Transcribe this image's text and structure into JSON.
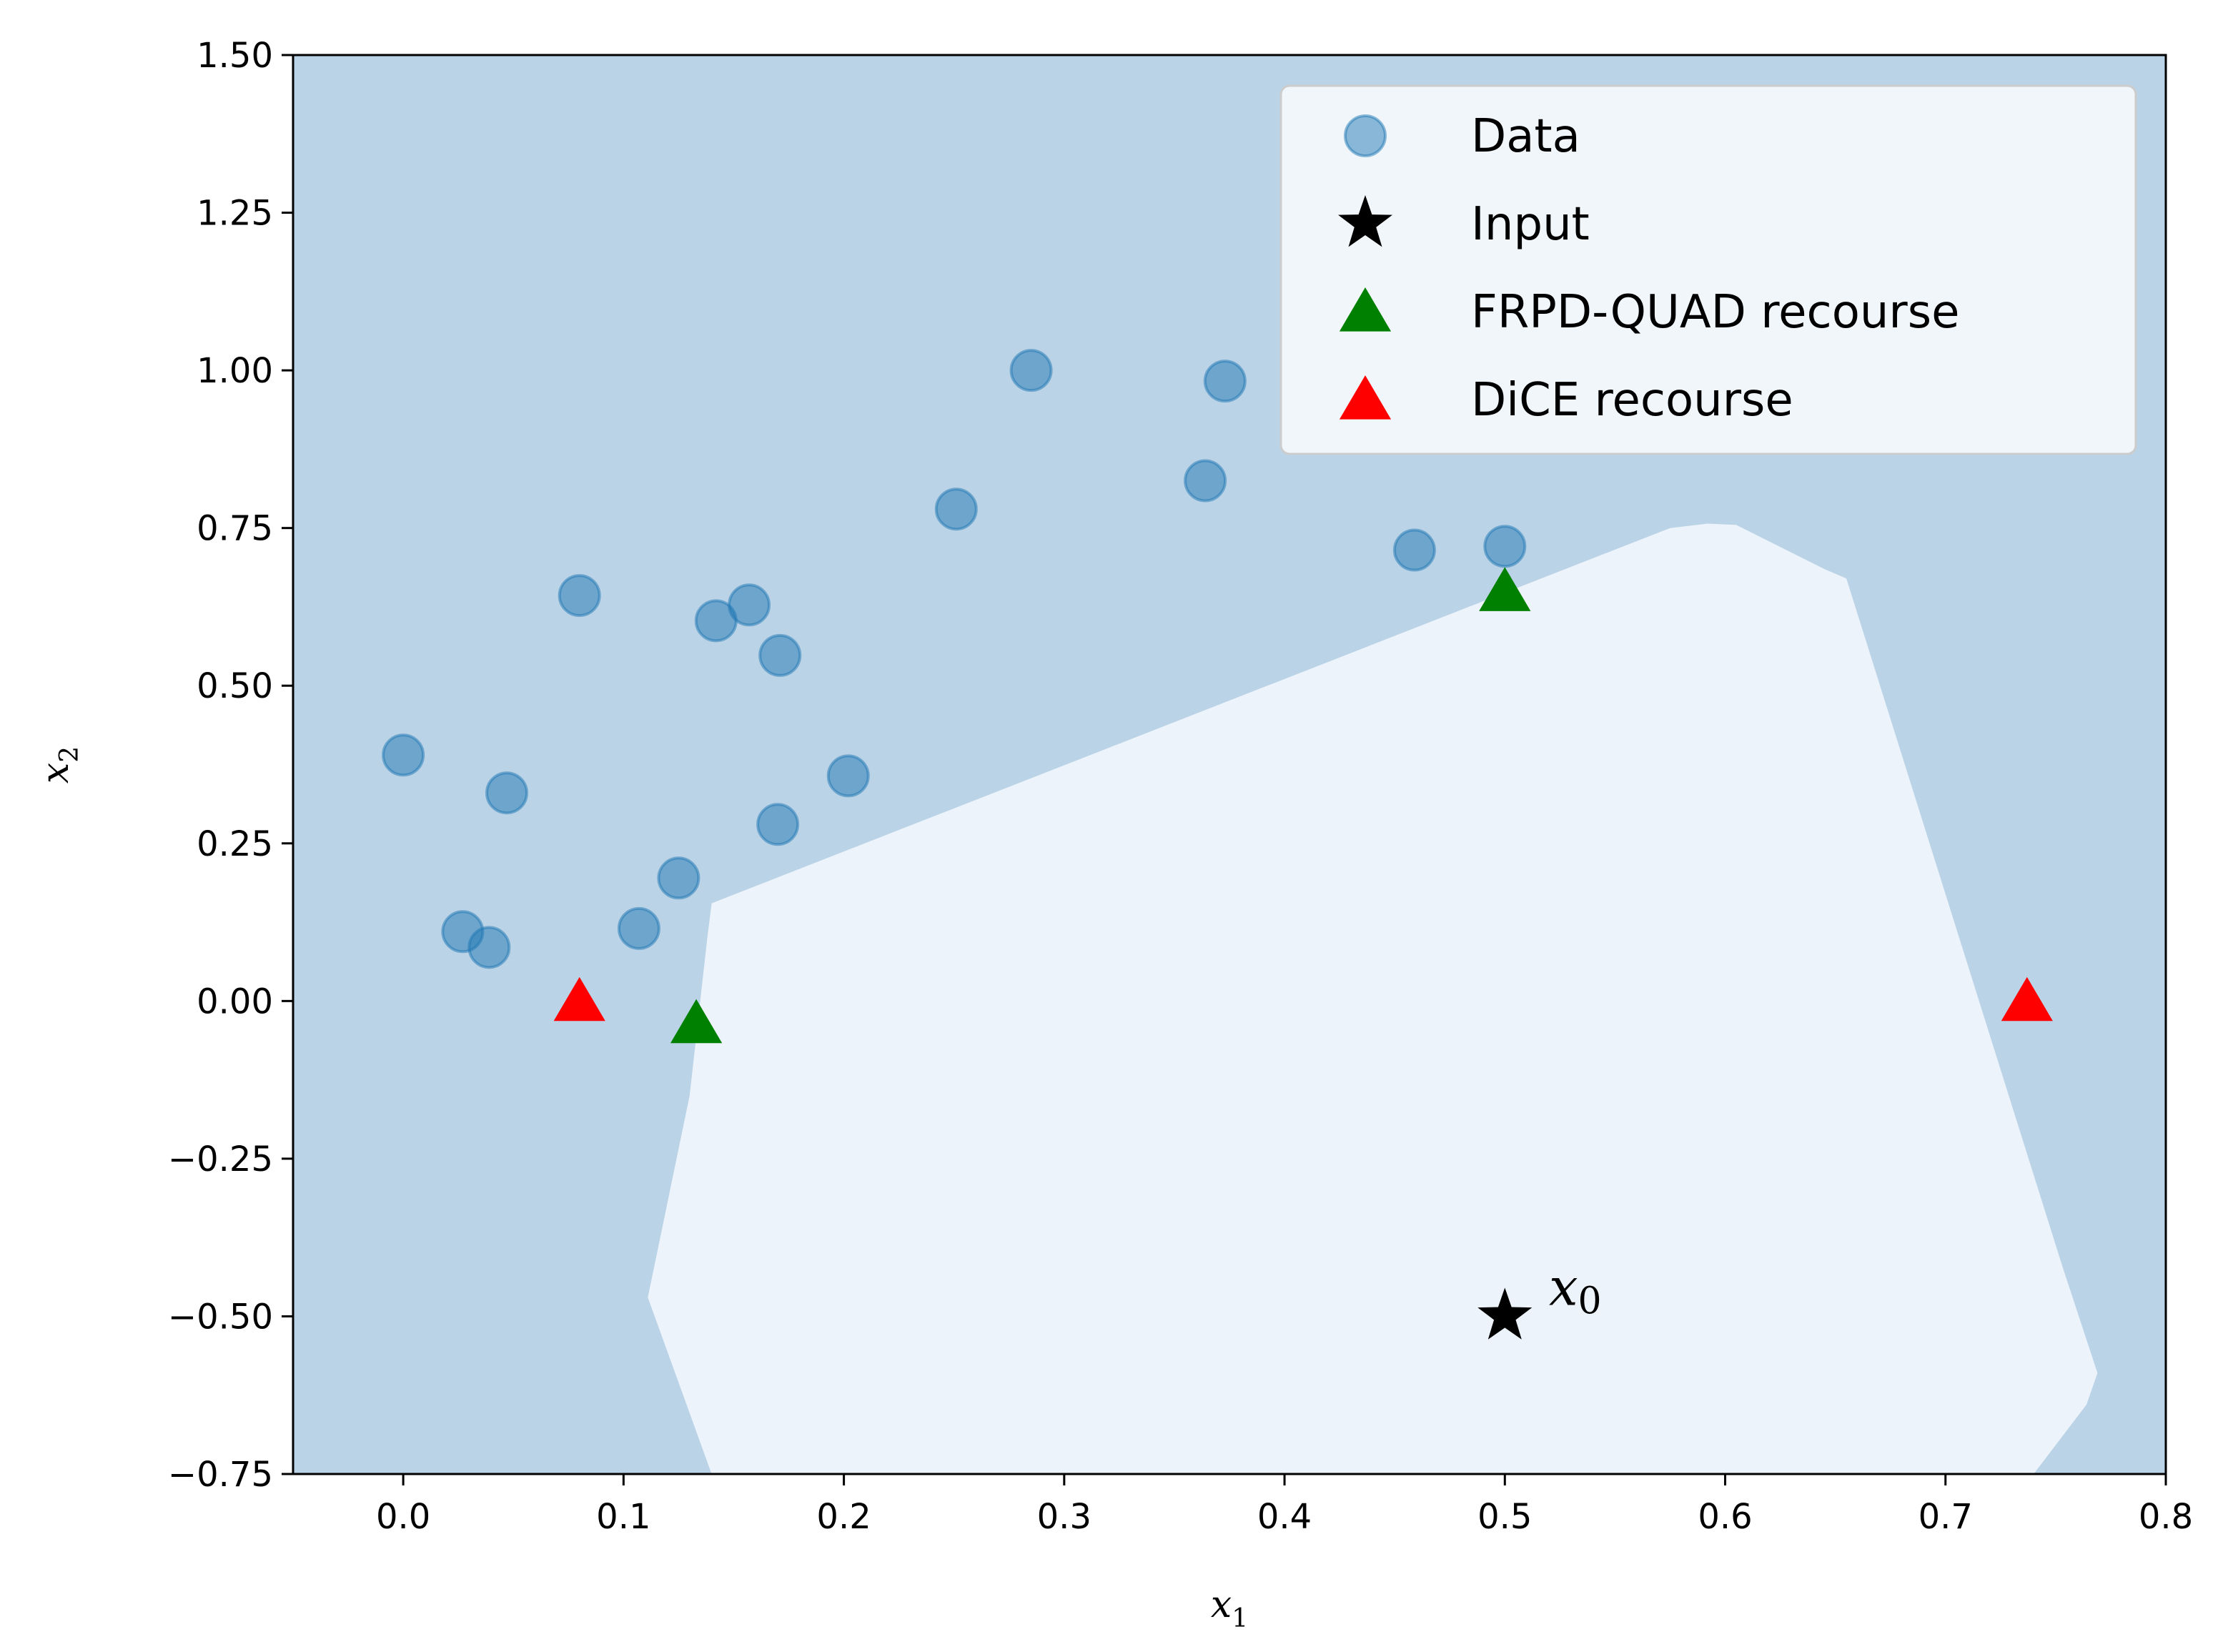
{
  "chart_data": {
    "type": "scatter",
    "title": "",
    "xlabel": "x_1",
    "ylabel": "x_2",
    "xlim": [
      -0.05,
      0.8
    ],
    "ylim": [
      -0.75,
      1.5
    ],
    "xticks": [
      "0.0",
      "0.1",
      "0.2",
      "0.3",
      "0.4",
      "0.5",
      "0.6",
      "0.7",
      "0.8"
    ],
    "yticks": [
      "−0.75",
      "−0.50",
      "−0.25",
      "0.00",
      "0.25",
      "0.50",
      "0.75",
      "1.00",
      "1.25",
      "1.50"
    ],
    "xtick_values": [
      0.0,
      0.1,
      0.2,
      0.3,
      0.4,
      0.5,
      0.6,
      0.7,
      0.8
    ],
    "ytick_values": [
      -0.75,
      -0.5,
      -0.25,
      0.0,
      0.25,
      0.5,
      0.75,
      1.0,
      1.25,
      1.5
    ],
    "grid": false,
    "legend_position": "top-right",
    "background_region_color": "#bbd3e7",
    "decision_region_color": "#ecf3fa",
    "decision_region": [
      [
        0.111,
        -0.47
      ],
      [
        0.14,
        -0.75
      ],
      [
        0.74,
        -0.75
      ],
      [
        0.764,
        -0.64
      ],
      [
        0.769,
        -0.59
      ],
      [
        0.753,
        -0.42
      ],
      [
        0.655,
        0.67
      ],
      [
        0.645,
        0.685
      ],
      [
        0.605,
        0.755
      ],
      [
        0.592,
        0.757
      ],
      [
        0.575,
        0.75
      ],
      [
        0.14,
        0.155
      ],
      [
        0.138,
        0.1
      ],
      [
        0.13,
        -0.15
      ]
    ],
    "series": [
      {
        "name": "Data",
        "marker": "circle",
        "color": "#1f77b4",
        "points": [
          [
            0.0,
            0.39
          ],
          [
            0.027,
            0.11
          ],
          [
            0.039,
            0.085
          ],
          [
            0.047,
            0.33
          ],
          [
            0.08,
            0.643
          ],
          [
            0.107,
            0.115
          ],
          [
            0.125,
            0.195
          ],
          [
            0.142,
            0.603
          ],
          [
            0.157,
            0.628
          ],
          [
            0.17,
            0.28
          ],
          [
            0.171,
            0.548
          ],
          [
            0.202,
            0.357
          ],
          [
            0.251,
            0.78
          ],
          [
            0.285,
            1.0
          ],
          [
            0.364,
            0.825
          ],
          [
            0.373,
            0.983
          ],
          [
            0.459,
            0.715
          ],
          [
            0.5,
            0.721
          ]
        ]
      },
      {
        "name": "Input",
        "marker": "star",
        "color": "#000000",
        "points": [
          [
            0.5,
            -0.5
          ]
        ]
      },
      {
        "name": "FRPD-QUAD recourse",
        "marker": "triangle",
        "color": "#008000",
        "points": [
          [
            0.133,
            -0.04
          ],
          [
            0.5,
            0.645
          ]
        ]
      },
      {
        "name": "DiCE recourse",
        "marker": "triangle",
        "color": "#ff0000",
        "points": [
          [
            0.08,
            -0.005
          ],
          [
            0.737,
            -0.005
          ]
        ]
      }
    ],
    "annotations": [
      {
        "text": "x",
        "subscript": "0",
        "x": 0.52,
        "y": -0.45
      }
    ]
  }
}
